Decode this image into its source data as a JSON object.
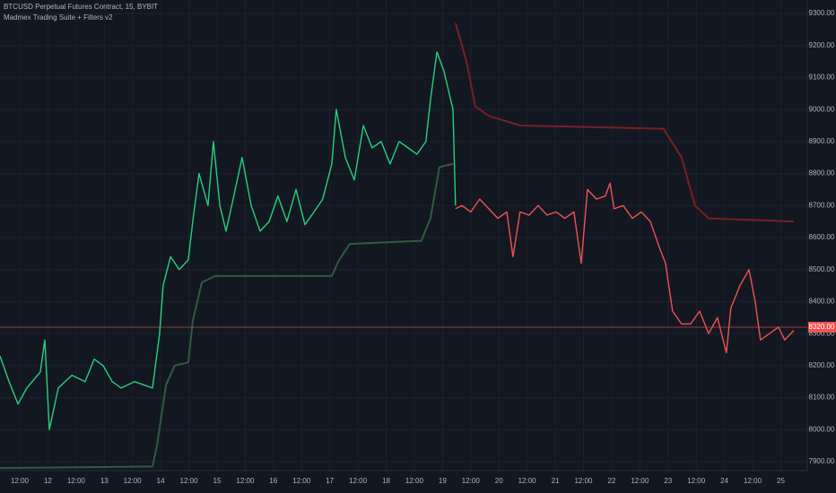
{
  "chart_data": {
    "type": "line",
    "title": "BTCUSD Perpetual Futures Contract, 15, BYBIT",
    "subtitle": "Madmex Trading Suite + Filters v2",
    "xlim": [
      -0.7,
      27.94
    ],
    "xticks": [
      {
        "value": 0,
        "label": "12:00"
      },
      {
        "value": 1,
        "label": "12"
      },
      {
        "value": 2,
        "label": "12:00"
      },
      {
        "value": 3,
        "label": "13"
      },
      {
        "value": 4,
        "label": "12:00"
      },
      {
        "value": 5,
        "label": "14"
      },
      {
        "value": 6,
        "label": "12:00"
      },
      {
        "value": 7,
        "label": "15"
      },
      {
        "value": 8,
        "label": "12:00"
      },
      {
        "value": 9,
        "label": "16"
      },
      {
        "value": 10,
        "label": "12:00"
      },
      {
        "value": 11,
        "label": "17"
      },
      {
        "value": 12,
        "label": "12:00"
      },
      {
        "value": 13,
        "label": "18"
      },
      {
        "value": 14,
        "label": "12:00"
      },
      {
        "value": 15,
        "label": "19"
      },
      {
        "value": 16,
        "label": "12:00"
      },
      {
        "value": 17,
        "label": "20"
      },
      {
        "value": 18,
        "label": "12:00"
      },
      {
        "value": 19,
        "label": "21"
      },
      {
        "value": 20,
        "label": "12:00"
      },
      {
        "value": 21,
        "label": "22"
      },
      {
        "value": 22,
        "label": "12:00"
      },
      {
        "value": 23,
        "label": "23"
      },
      {
        "value": 24,
        "label": "12:00"
      },
      {
        "value": 25,
        "label": "24"
      },
      {
        "value": 26,
        "label": "12:00"
      },
      {
        "value": 27,
        "label": "25"
      }
    ],
    "ylim": [
      7872,
      9342
    ],
    "yticks": [
      {
        "value": 7900,
        "label": "7900.00"
      },
      {
        "value": 8000,
        "label": "8000.00"
      },
      {
        "value": 8100,
        "label": "8100.00"
      },
      {
        "value": 8200,
        "label": "8200.00"
      },
      {
        "value": 8300,
        "label": "8300.00"
      },
      {
        "value": 8400,
        "label": "8400.00"
      },
      {
        "value": 8500,
        "label": "8500.00"
      },
      {
        "value": 8600,
        "label": "8600.00"
      },
      {
        "value": 8700,
        "label": "8700.00"
      },
      {
        "value": 8800,
        "label": "8800.00"
      },
      {
        "value": 8900,
        "label": "8900.00"
      },
      {
        "value": 9000,
        "label": "9000.00"
      },
      {
        "value": 9100,
        "label": "9100.00"
      },
      {
        "value": 9200,
        "label": "9200.00"
      },
      {
        "value": 9300,
        "label": "9300.00"
      }
    ],
    "grid": true,
    "last_price": {
      "value": 8320,
      "label": "8320.00",
      "color": "#ef5350"
    },
    "series": [
      {
        "color": "#26d07c",
        "width": 1.4,
        "x": [
          -0.7,
          -0.38,
          -0.06,
          0.25,
          0.73,
          0.89,
          1.05,
          1.37,
          1.85,
          2.32,
          2.64,
          2.96,
          3.28,
          3.6,
          4.07,
          4.71,
          4.96,
          5.09,
          5.35,
          5.66,
          5.98,
          6.14,
          6.36,
          6.68,
          6.87,
          7.1,
          7.32,
          7.57,
          7.89,
          8.21,
          8.53,
          8.85,
          9.16,
          9.48,
          9.8,
          10.12,
          10.44,
          10.75,
          11.07,
          11.23,
          11.55,
          11.87,
          12.19,
          12.5,
          12.82,
          13.14,
          13.46,
          13.78,
          14.09,
          14.41,
          14.57,
          14.8,
          15.05,
          15.37,
          15.46
        ],
        "values": [
          8230,
          8150,
          8080,
          8130,
          8180,
          8280,
          8000,
          8130,
          8170,
          8150,
          8220,
          8200,
          8150,
          8130,
          8150,
          8130,
          8300,
          8450,
          8540,
          8500,
          8530,
          8650,
          8800,
          8700,
          8900,
          8700,
          8620,
          8720,
          8850,
          8700,
          8620,
          8650,
          8730,
          8650,
          8750,
          8640,
          8680,
          8720,
          8830,
          9000,
          8850,
          8780,
          8950,
          8880,
          8900,
          8830,
          8900,
          8880,
          8860,
          8900,
          9030,
          9180,
          9120,
          9000,
          8700
        ]
      },
      {
        "color": "#ef5350",
        "width": 1.4,
        "x": [
          15.46,
          15.69,
          16.0,
          16.32,
          16.64,
          16.96,
          17.28,
          17.5,
          17.75,
          18.07,
          18.39,
          18.71,
          19.03,
          19.34,
          19.66,
          19.92,
          20.14,
          20.46,
          20.78,
          20.94,
          21.09,
          21.41,
          21.73,
          22.05,
          22.37,
          22.69,
          22.91,
          23.16,
          23.48,
          23.8,
          24.12,
          24.44,
          24.75,
          25.07,
          25.23,
          25.55,
          25.87,
          26.09,
          26.28,
          26.6,
          26.92,
          27.14,
          27.46
        ],
        "values": [
          8690,
          8700,
          8680,
          8720,
          8690,
          8660,
          8680,
          8540,
          8680,
          8670,
          8700,
          8670,
          8680,
          8660,
          8680,
          8520,
          8750,
          8720,
          8730,
          8770,
          8690,
          8700,
          8660,
          8680,
          8650,
          8570,
          8520,
          8370,
          8330,
          8330,
          8370,
          8300,
          8350,
          8240,
          8380,
          8450,
          8500,
          8400,
          8280,
          8300,
          8320,
          8280,
          8310
        ]
      },
      {
        "color": "#2e5c3f",
        "width": 2,
        "x": [
          -0.7,
          4.71,
          4.87,
          5.19,
          5.5,
          5.98,
          6.14,
          6.46,
          6.94,
          8.85,
          10.12,
          11.07,
          11.33,
          11.71,
          14.25,
          14.57,
          14.89,
          15.37
        ],
        "values": [
          7880,
          7885,
          7950,
          8140,
          8200,
          8210,
          8340,
          8460,
          8480,
          8480,
          8480,
          8480,
          8530,
          8580,
          8590,
          8660,
          8820,
          8830
        ]
      },
      {
        "color": "#7a1f22",
        "width": 2,
        "x": [
          15.46,
          15.85,
          16.16,
          16.64,
          17.75,
          22.84,
          23.48,
          23.96,
          24.44,
          27.46
        ],
        "values": [
          9270,
          9150,
          9010,
          8980,
          8950,
          8940,
          8850,
          8700,
          8660,
          8650
        ]
      }
    ]
  }
}
